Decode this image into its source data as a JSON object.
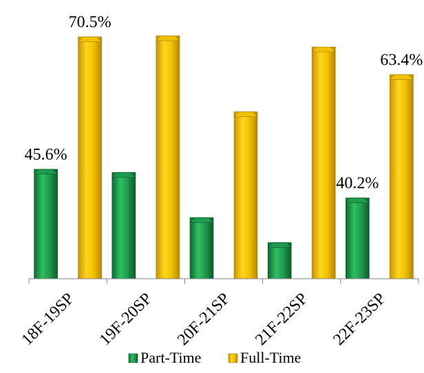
{
  "chart_data": {
    "type": "bar",
    "categories": [
      "18F-19SP",
      "19F-20SP",
      "20F-21SP",
      "21F-22SP",
      "22F-23SP"
    ],
    "series": [
      {
        "name": "Part-Time",
        "values": [
          45.6,
          45.0,
          36.5,
          31.8,
          40.2
        ],
        "color": "#1f9a4f",
        "labels": [
          "45.6%",
          "",
          "",
          "",
          "40.2%"
        ]
      },
      {
        "name": "Full-Time",
        "values": [
          70.5,
          70.7,
          56.4,
          68.6,
          63.4
        ],
        "color": "#f2c200",
        "labels": [
          "70.5%",
          "",
          "",
          "",
          "63.4%"
        ]
      }
    ],
    "ylim": [
      25,
      72
    ],
    "grid": false,
    "legend": "bottom"
  }
}
